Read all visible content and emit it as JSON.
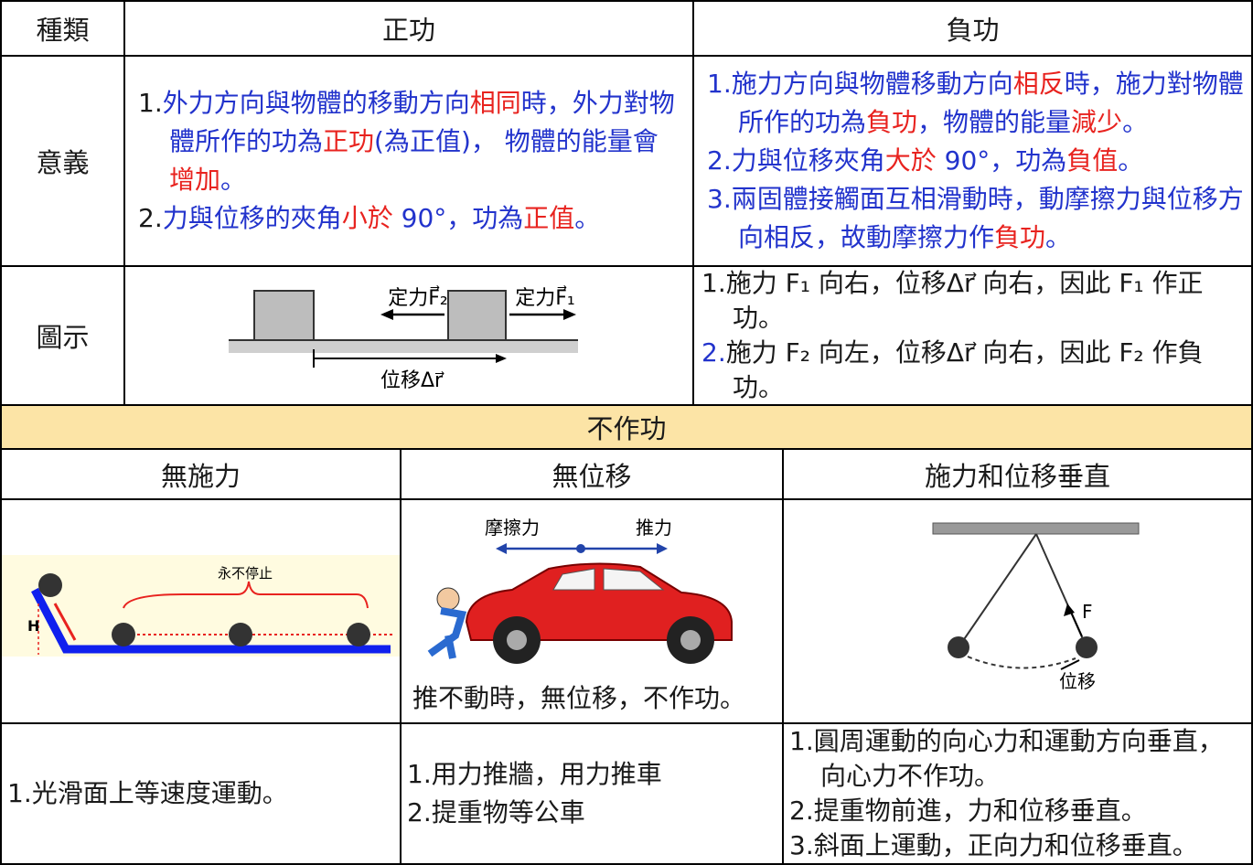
{
  "header": [
    "種類",
    "正功",
    "負功"
  ],
  "meaning": {
    "label": "意義",
    "positive": [
      [
        {
          "text": "1.",
          "color": "#1a1a1a"
        },
        {
          "text": "外力方向與物體的移動方向",
          "color": "#2233cc"
        },
        {
          "text": "相同",
          "color": "#e8231f"
        },
        {
          "text": "時，外力對物體所作的功為",
          "color": "#2233cc"
        },
        {
          "text": "正功",
          "color": "#e8231f"
        },
        {
          "text": "(為正值)， 物體的能量會",
          "color": "#2233cc"
        },
        {
          "text": "增加",
          "color": "#e8231f"
        },
        {
          "text": "。",
          "color": "#2233cc"
        }
      ],
      [
        {
          "text": "2.",
          "color": "#1a1a1a"
        },
        {
          "text": "力與位移的夾角",
          "color": "#2233cc"
        },
        {
          "text": "小於",
          "color": "#e8231f"
        },
        {
          "text": " 90°，功為",
          "color": "#2233cc"
        },
        {
          "text": "正值",
          "color": "#e8231f"
        },
        {
          "text": "。",
          "color": "#2233cc"
        }
      ]
    ],
    "negative": [
      [
        {
          "text": "1.施力方向與物體移動方向",
          "color": "#2233cc"
        },
        {
          "text": "相反",
          "color": "#e8231f"
        },
        {
          "text": "時，施力對物體所作的功為",
          "color": "#2233cc"
        },
        {
          "text": "負功",
          "color": "#e8231f"
        },
        {
          "text": "，物體的能量",
          "color": "#2233cc"
        },
        {
          "text": "減少",
          "color": "#e8231f"
        },
        {
          "text": "。",
          "color": "#2233cc"
        }
      ],
      [
        {
          "text": "2.力與位移夾角",
          "color": "#2233cc"
        },
        {
          "text": "大於",
          "color": "#e8231f"
        },
        {
          "text": " 90°，功為",
          "color": "#2233cc"
        },
        {
          "text": "負值",
          "color": "#e8231f"
        },
        {
          "text": "。",
          "color": "#2233cc"
        }
      ],
      [
        {
          "text": "3.兩固體接觸面互相滑動時，動摩擦力與位移方向相反，故動摩擦力作",
          "color": "#2233cc"
        },
        {
          "text": "負功",
          "color": "#e8231f"
        },
        {
          "text": "。",
          "color": "#2233cc"
        }
      ]
    ]
  },
  "figure": {
    "label": "圖示",
    "diagram": {
      "f2": "定力F⃗₂",
      "f1": "定力F⃗₁",
      "displacement": "位移Δr⃗"
    },
    "negative": [
      [
        {
          "text": "1.施力 F₁ 向右，位移Δr⃗  向右，因此 F₁ 作正功。",
          "color": "#1a1a1a"
        }
      ],
      [
        {
          "text": "2.",
          "color": "#2233cc"
        },
        {
          "text": "施力 F₂ 向左，位移Δr⃗  向右，因此 F₂ 作負功。",
          "color": "#1a1a1a"
        }
      ]
    ]
  },
  "no_work": {
    "title": "不作功",
    "columns": [
      "無施力",
      "無位移",
      "施力和位移垂直"
    ],
    "images": {
      "never_stop": "永不停止",
      "height": "H",
      "friction": "摩擦力",
      "push": "推力",
      "caption": "推不動時，無位移，不作功。",
      "force": "F",
      "displacement": "位移"
    },
    "notes": [
      [
        [
          {
            "text": "1.光滑面上等速度運動。",
            "color": "#1a1a1a"
          }
        ]
      ],
      [
        [
          {
            "text": "1.用力推牆，用力推車",
            "color": "#1a1a1a"
          }
        ],
        [
          {
            "text": "2.提重物等公車",
            "color": "#1a1a1a"
          }
        ]
      ],
      [
        [
          {
            "text": "1.圓周運動的向心力和運動方向垂直，向心力不作功。",
            "color": "#1a1a1a"
          }
        ],
        [
          {
            "text": "2.提重物前進，力和位移垂直。",
            "color": "#1a1a1a"
          }
        ],
        [
          {
            "text": "3.斜面上運動，正向力和位移垂直。",
            "color": "#1a1a1a"
          }
        ]
      ]
    ]
  }
}
